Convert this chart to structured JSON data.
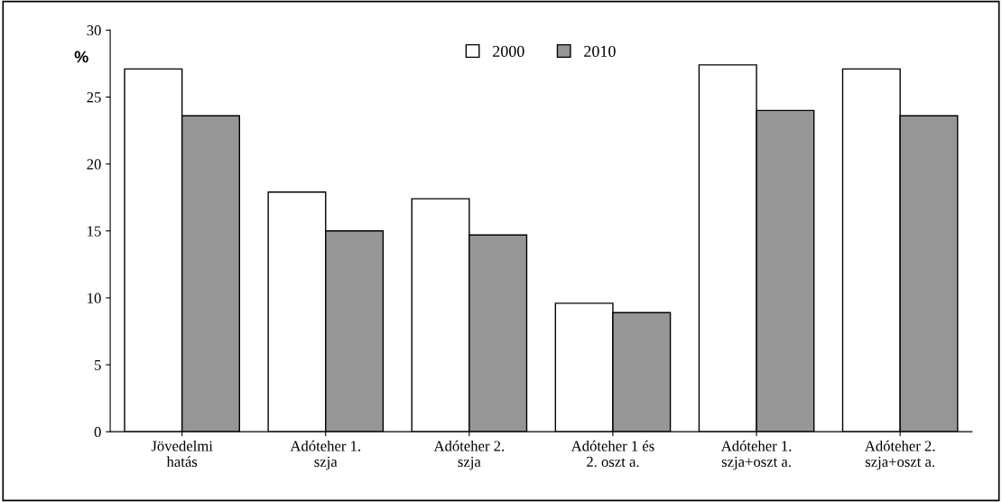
{
  "chart_data": {
    "type": "bar",
    "ylabel": "%",
    "categories": [
      "Jövedelmi\nhatás",
      "Adóteher 1.\nszja",
      "Adóteher 2.\nszja",
      "Adóteher 1 és\n2. oszt a.",
      "Adóteher 1.\nszja+oszt a.",
      "Adóteher 2.\nszja+oszt a."
    ],
    "series": [
      {
        "name": "2000",
        "color": "#ffffff",
        "values": [
          27.1,
          17.9,
          17.4,
          9.6,
          27.4,
          27.1
        ]
      },
      {
        "name": "2010",
        "color": "#969696",
        "values": [
          23.6,
          15.0,
          14.7,
          8.9,
          24.0,
          23.6
        ]
      }
    ],
    "ylim": [
      0,
      30
    ],
    "yticks": [
      0,
      5,
      10,
      15,
      20,
      25,
      30
    ],
    "grid": false,
    "legend": "top"
  }
}
